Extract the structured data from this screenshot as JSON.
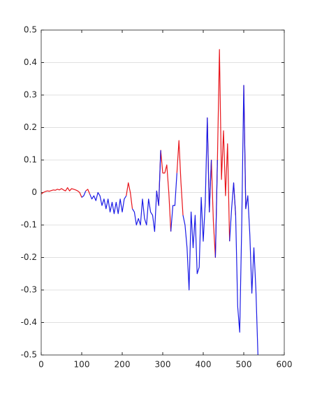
{
  "chart_data": {
    "type": "line",
    "x": [
      0,
      5,
      10,
      15,
      20,
      25,
      30,
      35,
      40,
      45,
      50,
      55,
      60,
      65,
      70,
      75,
      80,
      85,
      90,
      95,
      100,
      105,
      110,
      115,
      120,
      125,
      130,
      135,
      140,
      145,
      150,
      155,
      160,
      165,
      170,
      175,
      180,
      185,
      190,
      195,
      200,
      205,
      210,
      215,
      220,
      225,
      230,
      235,
      240,
      245,
      250,
      255,
      260,
      265,
      270,
      275,
      280,
      285,
      290,
      295,
      300,
      305,
      310,
      315,
      320,
      325,
      330,
      335,
      340,
      345,
      350,
      355,
      360,
      365,
      370,
      375,
      380,
      385,
      390,
      395,
      400,
      405,
      410,
      415,
      420,
      425,
      430,
      435,
      440,
      445,
      450,
      455,
      460,
      465,
      470,
      475,
      480,
      485,
      490,
      495,
      500,
      505,
      510,
      515,
      520,
      525,
      530,
      535
    ],
    "series": [
      {
        "color": "#e8141a",
        "values": [
          -0.005,
          0,
          0.003,
          0.005,
          0.004,
          0.006,
          0.008,
          0.007,
          0.01,
          0.008,
          0.012,
          0.008,
          0.005,
          0.015,
          0.005,
          0.012,
          0.01,
          0.008,
          0.005,
          0,
          -0.015,
          null,
          0.005,
          0.01,
          -0.005,
          null,
          null,
          null,
          null,
          null,
          null,
          null,
          null,
          null,
          null,
          null,
          null,
          null,
          null,
          null,
          null,
          null,
          -0.01,
          0.03,
          0,
          -0.05,
          null,
          null,
          null,
          null,
          null,
          null,
          null,
          null,
          null,
          null,
          null,
          0.005,
          -0.04,
          0.13,
          0.06,
          0.06,
          0.085,
          0,
          -0.12,
          null,
          null,
          0.06,
          0.16,
          0.03,
          -0.07,
          null,
          null,
          null,
          null,
          null,
          null,
          null,
          null,
          null,
          null,
          null,
          0.23,
          -0.06,
          0.1,
          -0.09,
          -0.2,
          0.1,
          0.44,
          0.04,
          0.19,
          -0.01,
          0.15,
          -0.15,
          null,
          0.03,
          -0.07,
          null,
          null,
          null,
          0.33,
          -0.05,
          null,
          null,
          null,
          null,
          null,
          null
        ]
      },
      {
        "color": "#1a1ae6",
        "values": [
          null,
          null,
          null,
          null,
          null,
          null,
          null,
          null,
          null,
          null,
          null,
          null,
          null,
          null,
          null,
          null,
          null,
          null,
          null,
          null,
          -0.015,
          -0.01,
          0.005,
          null,
          -0.005,
          -0.02,
          -0.01,
          -0.025,
          0,
          -0.01,
          -0.04,
          -0.02,
          -0.05,
          -0.02,
          -0.06,
          -0.03,
          -0.065,
          -0.03,
          -0.065,
          -0.02,
          -0.06,
          -0.02,
          -0.01,
          null,
          null,
          -0.05,
          -0.06,
          -0.1,
          -0.08,
          -0.1,
          -0.02,
          -0.08,
          -0.1,
          -0.02,
          -0.06,
          -0.07,
          -0.12,
          0.005,
          -0.04,
          0.13,
          null,
          null,
          null,
          null,
          -0.12,
          -0.04,
          -0.04,
          0.06,
          null,
          null,
          -0.07,
          -0.1,
          -0.17,
          -0.3,
          -0.06,
          -0.17,
          -0.07,
          -0.25,
          -0.23,
          -0.015,
          -0.15,
          -0.03,
          0.23,
          -0.06,
          0.1,
          null,
          -0.2,
          0.1,
          null,
          null,
          null,
          null,
          null,
          -0.15,
          -0.05,
          0.03,
          -0.07,
          -0.35,
          -0.43,
          -0.1,
          0.33,
          -0.05,
          -0.01,
          -0.13,
          -0.31,
          -0.17,
          -0.3,
          -0.5
        ]
      }
    ],
    "xlim": [
      0,
      600
    ],
    "xticks": [
      0,
      100,
      200,
      300,
      400,
      500,
      600
    ],
    "ylim": [
      -0.5,
      0.5
    ],
    "yticks": [
      -0.5,
      -0.4,
      -0.3,
      -0.2,
      -0.1,
      0,
      0.1,
      0.2,
      0.3,
      0.4,
      0.5
    ],
    "grid": true
  }
}
